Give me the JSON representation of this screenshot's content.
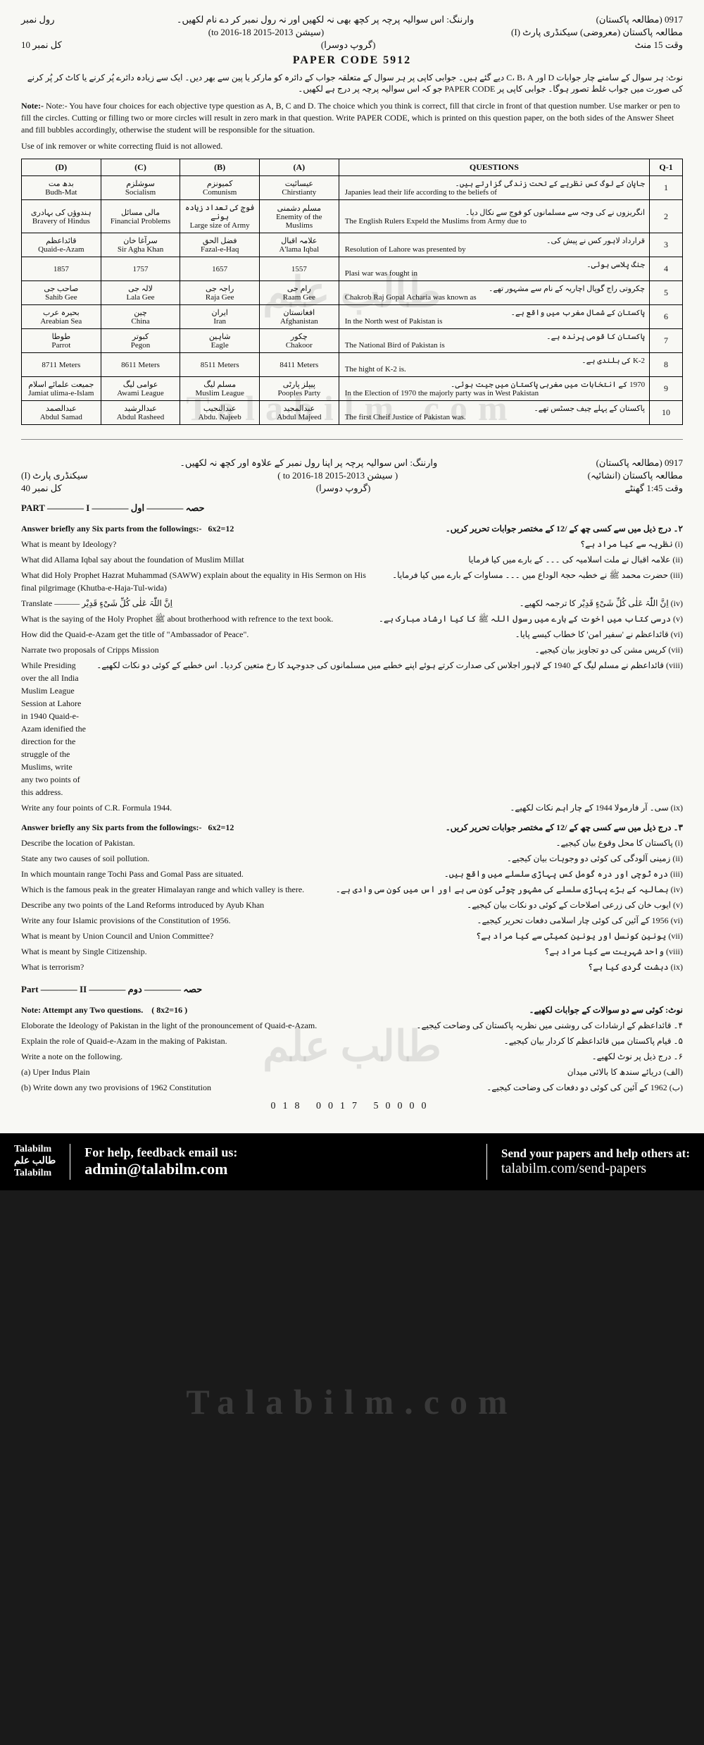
{
  "header": {
    "code_left": "0917 (مطالعہ پاکستان)",
    "roll_label": "رول نمبر",
    "warning_ur": "وارننگ: اس سوالیہ پرچہ پر کچھ بھی نہ لکھیں اور نہ رول نمبر کر دے نام لکھیں۔",
    "session": "(سیشن 2013-2015 to 2016-18)",
    "subject_ur": "مطالعہ پاکستان (معروضی) سیکنڈری پارٹ (I)",
    "paper_code": "PAPER CODE  5912",
    "group_ur": "(گروپ دوسرا)",
    "time_ur": "وقت 15 منٹ",
    "marks_ur": "کل نمبر 10",
    "urdu_instr": "نوٹ: ہر سوال کے سامنے چار جوابات D اور C، B، A دیے گئے ہیں۔ جوابی کاپی پر ہر سوال کے متعلقہ جواب کے دائرہ کو مارکر یا پین سے بھر دیں۔ ایک سے زیادہ دائرے پُر کرنے یا کاٹ کر پُر کرنے کی صورت میں جواب غلط تصور ہوگا۔ جوابی کاپی پر PAPER CODE جو کہ اس سوالیہ پرچہ پر درج ہے لکھیں۔",
    "eng_note": "Note:- You have four choices for each objective type question as A, B, C and D. The choice which you think is correct, fill that circle in front of that question number. Use marker or pen to fill the circles. Cutting or filling two or more circles will result in zero mark in that question. Write PAPER CODE, which is printed on this question paper, on the both sides of the Answer Sheet and fill bubbles accordingly, otherwise the student will be responsible for the situation.",
    "remover_note": "Use of ink remover or white correcting fluid is not allowed."
  },
  "table": {
    "headers": {
      "d": "(D)",
      "c": "(C)",
      "b": "(B)",
      "a": "(A)",
      "q": "QUESTIONS",
      "n": "Q-1"
    },
    "rows": [
      {
        "d_ur": "بدھ مت",
        "d_en": "Budh-Mat",
        "c_ur": "سوشلزم",
        "c_en": "Socialism",
        "b_ur": "کمیونزم",
        "b_en": "Comunism",
        "a_ur": "عیسائیت",
        "a_en": "Chirstianty",
        "q_ur": "جاپان کے لوگ کس نظریے کے تحت زندگی گزارتے ہیں۔",
        "q_en": "Japanies lead their life according to the beliefs of",
        "n": "1"
      },
      {
        "d_ur": "ہندوؤں کی بہادری",
        "d_en": "Bravery of Hindus",
        "c_ur": "مالی مسائل",
        "c_en": "Financial Problems",
        "b_ur": "فوج کی تعداد زیادہ ہونے",
        "b_en": "Large size of Army",
        "a_ur": "مسلم دشمنی",
        "a_en": "Enemity of the Muslims",
        "q_ur": "انگریزوں نے کی وجہ سے مسلمانوں کو فوج سے نکال دیا۔",
        "q_en": "The English Rulers Expeld the Muslims from Army due to",
        "n": "2"
      },
      {
        "d_ur": "قائداعظم",
        "d_en": "Quaid-e-Azam",
        "c_ur": "سرآغا خان",
        "c_en": "Sir Agha Khan",
        "b_ur": "فضل الحق",
        "b_en": "Fazal-e-Haq",
        "a_ur": "علامہ اقبال",
        "a_en": "A'lama Iqbal",
        "q_ur": "قرارداد لاہور کس نے پیش کی۔",
        "q_en": "Resolution of Lahore was presented by",
        "n": "3"
      },
      {
        "d_ur": "",
        "d_en": "1857",
        "c_ur": "",
        "c_en": "1757",
        "b_ur": "",
        "b_en": "1657",
        "a_ur": "",
        "a_en": "1557",
        "q_ur": "جنگ پلاسی ہوئی۔",
        "q_en": "Plasi war was fought in",
        "n": "4"
      },
      {
        "d_ur": "صاحب جی",
        "d_en": "Sahib Gee",
        "c_ur": "لالہ جی",
        "c_en": "Lala Gee",
        "b_ur": "راجہ جی",
        "b_en": "Raja Gee",
        "a_ur": "رام جی",
        "a_en": "Raam Gee",
        "q_ur": "چکروتی راج گوپال اچاریہ کے نام سے مشہور تھے۔",
        "q_en": "Chakrob Raj Gopal Acharia was known as",
        "n": "5"
      },
      {
        "d_ur": "بحیرہ عرب",
        "d_en": "Areabian Sea",
        "c_ur": "چین",
        "c_en": "China",
        "b_ur": "ایران",
        "b_en": "Iran",
        "a_ur": "افغانستان",
        "a_en": "Afghanistan",
        "q_ur": "پاکستان کے شمال مغرب میں واقع ہے۔",
        "q_en": "In the North west of Pakistan is",
        "n": "6"
      },
      {
        "d_ur": "طوطا",
        "d_en": "Parrot",
        "c_ur": "کبوتر",
        "c_en": "Pegon",
        "b_ur": "شاہین",
        "b_en": "Eagle",
        "a_ur": "چکور",
        "a_en": "Chakoor",
        "q_ur": "پاکستان کا قومی پرندہ ہے۔",
        "q_en": "The National Bird of Pakistan is",
        "n": "7"
      },
      {
        "d_ur": "",
        "d_en": "8711 Meters",
        "c_ur": "",
        "c_en": "8611 Meters",
        "b_ur": "",
        "b_en": "8511 Meters",
        "a_ur": "",
        "a_en": "8411 Meters",
        "q_ur": "K-2 کی بلندی ہے۔",
        "q_en": "The hight of K-2 is.",
        "n": "8"
      },
      {
        "d_ur": "جمیعت علمائے اسلام",
        "d_en": "Jamiat ulima-e-Islam",
        "c_ur": "عوامی لیگ",
        "c_en": "Awami League",
        "b_ur": "مسلم لیگ",
        "b_en": "Muslim League",
        "a_ur": "پیپلز پارٹی",
        "a_en": "Pooples Party",
        "q_ur": "1970 کے انتخابات میں مغربی پاکستان میں جیت ہوئی۔",
        "q_en": "In the Election of 1970 the majorly party was in West Pakistan",
        "n": "9"
      },
      {
        "d_ur": "عبدالصمد",
        "d_en": "Abdul Samad",
        "c_ur": "عبدالرشید",
        "c_en": "Abdul Rasheed",
        "b_ur": "عبدالنجیب",
        "b_en": "Abdu. Najeeb",
        "a_ur": "عبدالمجید",
        "a_en": "Abdul Majeed",
        "q_ur": "پاکستان کے پہلے چیف جسٹس تھے۔",
        "q_en": "The first Cheif Justice of Pakistan was.",
        "n": "10"
      }
    ]
  },
  "sub": {
    "code": "0917 (مطالعہ پاکستان)",
    "warning": "وارننگ: اس سوالیہ پرچہ پر اپنا رول نمبر کے علاوہ اور کچھ نہ لکھیں۔",
    "session": "( سیشن 2013-2015 to 2016-18 )",
    "subject": "مطالعہ پاکستان (انشائیہ)",
    "group": "(گروپ دوسرا)",
    "part_label": "سیکنڈری پارٹ (I)",
    "time": "وقت 1:45 گھنٹے",
    "marks": "کل نمبر 40",
    "part1_title": "PART ———— I ———— حصہ ———— اول"
  },
  "q2": {
    "instr_en": "Answer briefly any Six parts from the followings:-",
    "instr_marks": "6x2=12",
    "instr_ur": "۲۔ درج ذیل میں سے کسی چھ کے /12 کے مختصر جوابات تحریر کریں۔",
    "items": [
      {
        "en": "What is meant by Ideology?",
        "ur": "(i) نظریہ سے کیا مراد ہے؟"
      },
      {
        "en": "What did Allama Iqbal say about the foundation of Muslim Millat",
        "ur": "(ii) علامہ اقبال نے ملت اسلامیہ کی ۔۔۔ کے بارے میں کیا فرمایا"
      },
      {
        "en": "What did Holy Prophet Hazrat Muhammad (SAWW) explain about the equality in His Sermon on His final pilgrimage (Khutba-e-Haja-Tul-wida)",
        "ur": "(iii) حضرت محمد ﷺ نے خطبہ حجۃ الوداع میں ۔۔۔ مساوات کے بارے میں کیا فرمایا۔"
      },
      {
        "en": "Translate ——— اِنَّ اللّٰہَ عَلٰی کُلِّ شَیْءٍ قَدِیْر",
        "ur": "(iv) اِنَّ اللّٰہَ عَلٰی کُلِّ شَیْءٍ قَدِیْر کا ترجمہ لکھیے۔"
      },
      {
        "en": "What is the saying of the Holy Prophet ﷺ about brotherhood with refrence to the text book.",
        "ur": "(v) درسی کتاب میں اخوت کے بارے میں رسول اللہ ﷺ کا کیا ارشاد مبارک ہے۔"
      },
      {
        "en": "How did the Quaid-e-Azam get the title of \"Ambassador of Peace\".",
        "ur": "(vi) قائداعظم نے 'سفیر امن' کا خطاب کیسے پایا۔"
      },
      {
        "en": "Narrate two proposals of Cripps Mission",
        "ur": "(vii) کرپس مشن کی دو تجاویز بیان کیجیے۔"
      },
      {
        "en": "While Presiding over the all India Muslim League Session at Lahore in 1940 Quaid-e-Azam idenified the direction for the struggle of the Muslims, write any two points of this address.",
        "ur": "(viii) قائداعظم نے مسلم لیگ کے 1940 کے لاہور اجلاس کی صدارت کرتے ہوئے اپنے خطبے میں مسلمانوں کی جدوجہد کا رخ متعین کردیا۔ اس خطبے کے کوئی دو نکات لکھیے۔"
      },
      {
        "en": "Write any four points of C.R. Formula 1944.",
        "ur": "(ix) سی۔ آر فارمولا 1944 کے چار اہم نکات لکھیے۔"
      }
    ]
  },
  "q3": {
    "instr_en": "Answer briefly any Six parts from the followings:-",
    "instr_marks": "6x2=12",
    "instr_ur": "۳۔ درج ذیل میں سے کسی چھ کے /12 کے مختصر جوابات تحریر کریں۔",
    "items": [
      {
        "en": "Describe the location of Pakistan.",
        "ur": "(i) پاکستان کا محل وقوع بیان کیجیے۔"
      },
      {
        "en": "State any two causes of soil pollution.",
        "ur": "(ii) زمینی آلودگی کی کوئی دو وجوہات بیان کیجیے۔"
      },
      {
        "en": "In which mountain range Tochi Pass and Gomal Pass are situated.",
        "ur": "(iii) درہ ٹوچی اور درہ گومل کس پہاڑی سلسلے میں واقع ہیں۔"
      },
      {
        "en": "Which is the famous peak in the greater Himalayan range and which valley is there.",
        "ur": "(iv) ہمالیہ کے بڑے پہاڑی سلسلے کی مشہور چوٹی کون سی ہے اور اس میں کون سی وادی ہے۔"
      },
      {
        "en": "Describe any two points of the Land Reforms introduced by Ayub Khan",
        "ur": "(v) ایوب خان کی زرعی اصلاحات کے کوئی دو نکات بیان کیجیے۔"
      },
      {
        "en": "Write any four Islamic provisions of the Constitution of 1956.",
        "ur": "(vi) 1956 کے آئین کی کوئی چار اسلامی دفعات تحریر کیجیے۔"
      },
      {
        "en": "What is meant by Union Council and Union Committee?",
        "ur": "(vii) یونین کونسل اور یونین کمیٹی سے کیا مراد ہے؟"
      },
      {
        "en": "What is meant by Single Citizenship.",
        "ur": "(viii) واحد شہریت سے کیا مراد ہے؟"
      },
      {
        "en": "What is terrorism?",
        "ur": "(ix) دہشت گردی کیا ہے؟"
      }
    ]
  },
  "part2": {
    "title": "Part ———— II ———— حصہ ———— دوم",
    "note_en": "Note: Attempt any Two questions.",
    "note_marks": "( 8x2=16 )",
    "note_ur": "نوٹ: کوئی سے دو سوالات کے جوابات لکھیے۔",
    "items": [
      {
        "en": "Eloborate the Ideology of Pakistan in the light of the pronouncement of Quaid-e-Azam.",
        "ur": "۴۔ قائداعظم کے ارشادات کی روشنی میں نظریہ پاکستان کی وضاحت کیجیے۔"
      },
      {
        "en": "Explain the role of Quaid-e-Azam in the making of Pakistan.",
        "ur": "۵۔ قیام پاکستان میں قائداعظم کا کردار بیان کیجیے۔"
      },
      {
        "en": "Write a note on the following.",
        "ur": "۶۔ درج ذیل پر نوٹ لکھیے۔"
      },
      {
        "en": "(a) Uper Indus Plain",
        "ur": "(الف) دریائے سندھ کا بالائی میدان"
      },
      {
        "en": "(b) Write down any two provisions of 1962 Constitution",
        "ur": "(ب) 1962 کے آئین کی کوئی دو دفعات کی وضاحت کیجیے۔"
      }
    ]
  },
  "code_bottom": "018    0017    50000",
  "watermarks": {
    "w1": "طالب علم",
    "w2": "Talabilm.com",
    "w3": "طالب علم",
    "w4": "Talabilm.com"
  },
  "footer": {
    "logo1": "Talabilm",
    "logo2": "طالب علم",
    "logo3": "Talabilm",
    "mid_title": "For help, feedback email us:",
    "email": "admin@talabilm.com",
    "right_title": "Send your papers and help others at:",
    "url": "talabilm.com/send-papers"
  }
}
